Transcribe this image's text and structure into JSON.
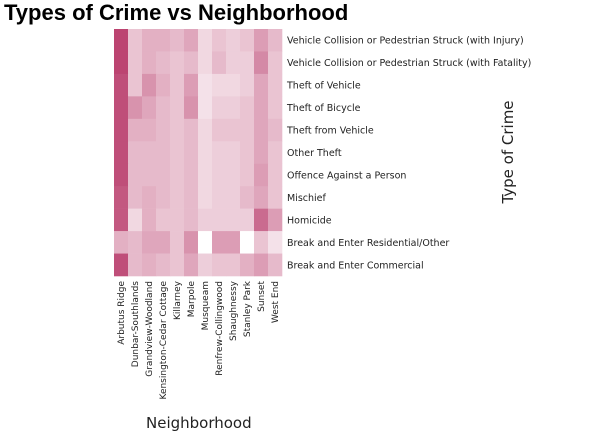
{
  "chart_data": {
    "type": "heatmap",
    "title": "Types of Crime vs Neighborhood",
    "xlabel": "Neighborhood",
    "ylabel": "Type of Crime",
    "x": [
      "Arbutus Ridge",
      "Dunbar-Southlands",
      "Grandview-Woodland",
      "Kensington-Cedar Cottage",
      "Killarney",
      "Marpole",
      "Musqueam",
      "Renfrew-Collingwood",
      "Shaughnessy",
      "Stanley Park",
      "Sunset",
      "West End"
    ],
    "y": [
      "Vehicle Collision or Pedestrian Struck (with Injury)",
      "Vehicle Collision or Pedestrian Struck (with Fatality)",
      "Theft of Vehicle",
      "Theft of Bicycle",
      "Theft from Vehicle",
      "Other Theft",
      "Offence Against a Person",
      "Mischief",
      "Homicide",
      "Break and Enter Residential/Other",
      "Break and Enter Commercial"
    ],
    "values": [
      [
        0.95,
        0.3,
        0.4,
        0.4,
        0.35,
        0.45,
        0.2,
        0.3,
        0.25,
        0.3,
        0.5,
        0.35
      ],
      [
        0.95,
        0.3,
        0.4,
        0.35,
        0.3,
        0.35,
        0.2,
        0.35,
        0.25,
        0.25,
        0.6,
        0.3
      ],
      [
        0.9,
        0.3,
        0.55,
        0.4,
        0.3,
        0.5,
        0.15,
        0.2,
        0.2,
        0.25,
        0.45,
        0.3
      ],
      [
        0.9,
        0.55,
        0.45,
        0.35,
        0.3,
        0.55,
        0.15,
        0.25,
        0.25,
        0.3,
        0.45,
        0.3
      ],
      [
        0.9,
        0.4,
        0.4,
        0.35,
        0.3,
        0.35,
        0.2,
        0.3,
        0.3,
        0.3,
        0.45,
        0.35
      ],
      [
        0.9,
        0.35,
        0.35,
        0.35,
        0.3,
        0.35,
        0.2,
        0.25,
        0.25,
        0.3,
        0.45,
        0.3
      ],
      [
        0.9,
        0.35,
        0.35,
        0.35,
        0.3,
        0.35,
        0.2,
        0.25,
        0.25,
        0.3,
        0.5,
        0.3
      ],
      [
        0.85,
        0.35,
        0.4,
        0.35,
        0.3,
        0.35,
        0.2,
        0.25,
        0.25,
        0.35,
        0.45,
        0.3
      ],
      [
        0.85,
        0.2,
        0.4,
        0.3,
        0.3,
        0.35,
        0.25,
        0.25,
        0.25,
        0.25,
        0.75,
        0.5
      ],
      [
        0.4,
        0.35,
        0.45,
        0.45,
        0.3,
        0.55,
        0.0,
        0.5,
        0.5,
        0.0,
        0.3,
        0.15
      ],
      [
        0.9,
        0.35,
        0.4,
        0.35,
        0.3,
        0.45,
        0.25,
        0.3,
        0.3,
        0.4,
        0.5,
        0.35
      ]
    ],
    "color_low": "#ffffff",
    "color_high": "#b83a6a",
    "grid": false,
    "legend": "none"
  }
}
